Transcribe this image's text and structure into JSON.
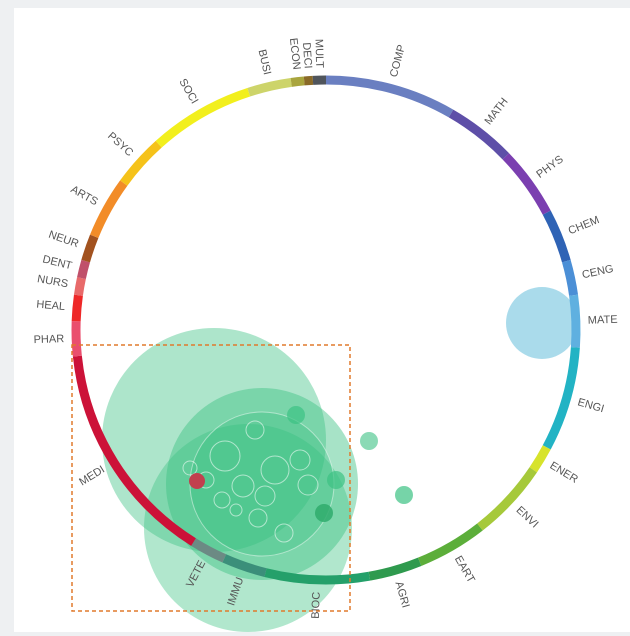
{
  "diagram": {
    "segments": [
      {
        "label": "COMP",
        "color": "#6a7fc1",
        "start": 0,
        "end": 30
      },
      {
        "label": "MATH",
        "color": "#5e4fa8",
        "start": 30,
        "end": 46
      },
      {
        "label": "PHYS",
        "color": "#7b3fb0",
        "start": 46,
        "end": 62
      },
      {
        "label": "CHEM",
        "color": "#2f63b5",
        "start": 62,
        "end": 74
      },
      {
        "label": "CENG",
        "color": "#4b8fd6",
        "start": 74,
        "end": 82
      },
      {
        "label": "MATE",
        "color": "#5fb0e0",
        "start": 82,
        "end": 94
      },
      {
        "label": "ENGI",
        "color": "#22b3c4",
        "start": 94,
        "end": 118
      },
      {
        "label": "ENER",
        "color": "#d7e32b",
        "start": 118,
        "end": 124
      },
      {
        "label": "ENVI",
        "color": "#a6c93a",
        "start": 124,
        "end": 142
      },
      {
        "label": "EART",
        "color": "#5cae3a",
        "start": 142,
        "end": 158
      },
      {
        "label": "AGRI",
        "color": "#2f9a4e",
        "start": 158,
        "end": 170
      },
      {
        "label": "BIOC",
        "color": "#24a06a",
        "start": 170,
        "end": 194
      },
      {
        "label": "IMMU",
        "color": "#3b8f7a",
        "start": 194,
        "end": 204
      },
      {
        "label": "VETE",
        "color": "#6c8a84",
        "start": 204,
        "end": 212
      },
      {
        "label": "MEDI",
        "color": "#cc1238",
        "start": 212,
        "end": 264
      },
      {
        "label": "PHAR",
        "color": "#ea4f6e",
        "start": 264,
        "end": 272
      },
      {
        "label": "HEAL",
        "color": "#ee2828",
        "start": 272,
        "end": 278
      },
      {
        "label": "NURS",
        "color": "#e86a6a",
        "start": 278,
        "end": 282
      },
      {
        "label": "DENT",
        "color": "#c0506a",
        "start": 282,
        "end": 286
      },
      {
        "label": "NEUR",
        "color": "#a2521f",
        "start": 286,
        "end": 292
      },
      {
        "label": "ARTS",
        "color": "#f28c28",
        "start": 292,
        "end": 306
      },
      {
        "label": "PSYC",
        "color": "#f5c21a",
        "start": 306,
        "end": 318
      },
      {
        "label": "SOCI",
        "color": "#f2ef1d",
        "start": 318,
        "end": 342
      },
      {
        "label": "BUSI",
        "color": "#cdd46a",
        "start": 342,
        "end": 352
      },
      {
        "label": "ECON",
        "color": "#a9a53e",
        "start": 352,
        "end": 355
      },
      {
        "label": "DECI",
        "color": "#8a6a28",
        "start": 355,
        "end": 357
      },
      {
        "label": "MULT",
        "color": "#50555c",
        "start": 357,
        "end": 360
      }
    ],
    "bubble_colors": {
      "green": "#3cc283",
      "blue": "#8ecfe4",
      "red": "#c1404e"
    },
    "selection_color": "#e07a2d"
  }
}
